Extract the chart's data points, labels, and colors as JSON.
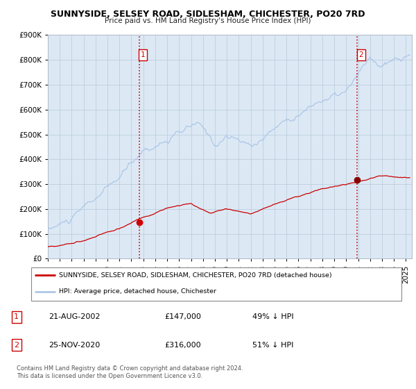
{
  "title1": "SUNNYSIDE, SELSEY ROAD, SIDLESHAM, CHICHESTER, PO20 7RD",
  "title2": "Price paid vs. HM Land Registry's House Price Index (HPI)",
  "hpi_color": "#aec6e8",
  "price_color": "#cc0000",
  "plot_bg_color": "#dce9f5",
  "ylim": [
    0,
    900000
  ],
  "xlim_start": 1995.0,
  "xlim_end": 2025.5,
  "sale1_date": 2002.64,
  "sale1_price": 147000,
  "sale2_date": 2020.9,
  "sale2_price": 316000,
  "legend_entry1": "SUNNYSIDE, SELSEY ROAD, SIDLESHAM, CHICHESTER, PO20 7RD (detached house)",
  "legend_entry2": "HPI: Average price, detached house, Chichester",
  "table_row1": [
    "1",
    "21-AUG-2002",
    "£147,000",
    "49% ↓ HPI"
  ],
  "table_row2": [
    "2",
    "25-NOV-2020",
    "£316,000",
    "51% ↓ HPI"
  ],
  "footnote": "Contains HM Land Registry data © Crown copyright and database right 2024.\nThis data is licensed under the Open Government Licence v3.0.",
  "ytick_labels": [
    "£0",
    "£100K",
    "£200K",
    "£300K",
    "£400K",
    "£500K",
    "£600K",
    "£700K",
    "£800K",
    "£900K"
  ],
  "ytick_vals": [
    0,
    100000,
    200000,
    300000,
    400000,
    500000,
    600000,
    700000,
    800000,
    900000
  ]
}
